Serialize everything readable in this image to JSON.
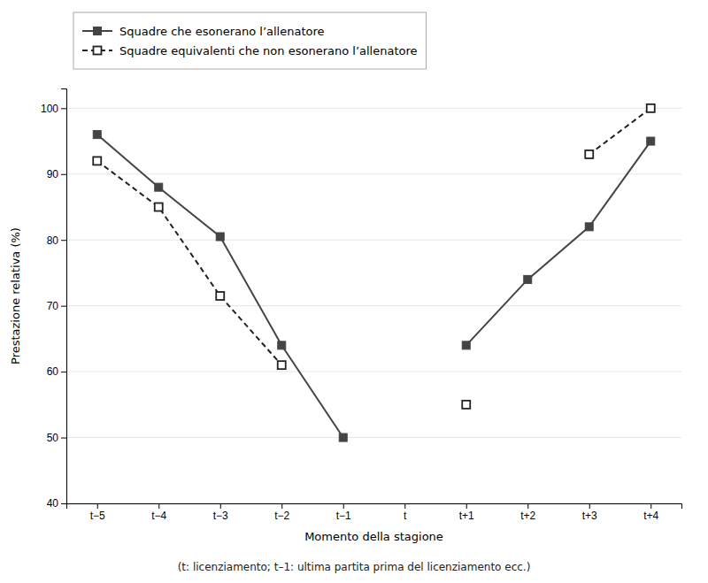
{
  "chart_data": {
    "type": "line",
    "subtitle": "(t: licenziamento; t–1: ultima partita prima del licenziamento ecc.)",
    "x_label": "Momento della stagione",
    "y_label": "Prestazione relativa (%)",
    "categories": [
      "t−5",
      "t−4",
      "t−3",
      "t−2",
      "t−1",
      "t",
      "t+1",
      "t+2",
      "t+3",
      "t+4"
    ],
    "series": [
      {
        "name": "Squadre che esonerano l’allenatore",
        "color": "#444444",
        "marker": "square",
        "line_style": "solid",
        "values": [
          96,
          88,
          80.5,
          64,
          50,
          null,
          64,
          74,
          82,
          95
        ]
      },
      {
        "name": "Squadre equivalenti che non esonerano l’allenatore",
        "color": "#222222",
        "marker": "open-square",
        "line_style": "dashed",
        "values": [
          92,
          85,
          71.5,
          61,
          null,
          null,
          55,
          null,
          93,
          100
        ]
      }
    ],
    "ylim": [
      40,
      103
    ],
    "yticks": [
      40,
      50,
      60,
      70,
      80,
      90,
      100
    ],
    "grid": true,
    "legend": "top-left"
  }
}
